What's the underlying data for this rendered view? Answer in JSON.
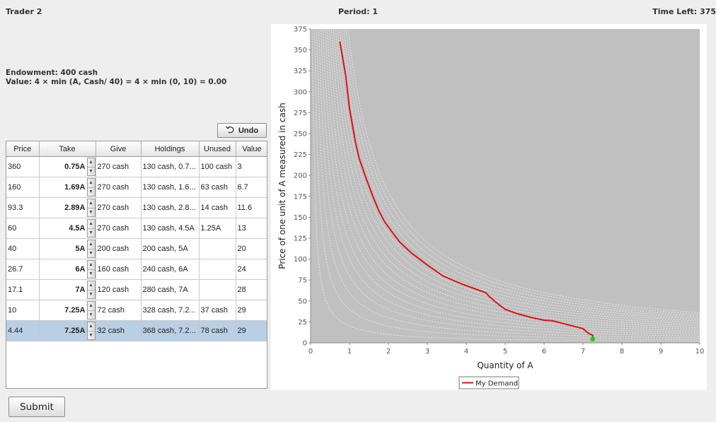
{
  "header": {
    "trader": "Trader 2",
    "period": "Period: 1",
    "time_left": "Time Left: 375"
  },
  "info": {
    "endowment": "Endowment: 400 cash",
    "value": "Value: 4 × min (A, Cash/ 40) = 4 × min (0, 10) = 0.00"
  },
  "undo": {
    "label": "Undo",
    "icon": "undo-icon"
  },
  "table": {
    "columns": [
      "Price",
      "Take",
      "Give",
      "Holdings",
      "Unused",
      "Value"
    ],
    "rows": [
      {
        "price": "360",
        "take": "0.75A",
        "give": "270 cash",
        "holdings": "130 cash, 0.7...",
        "unused": "100 cash",
        "value": "3"
      },
      {
        "price": "160",
        "take": "1.69A",
        "give": "270 cash",
        "holdings": "130 cash, 1.6...",
        "unused": "63 cash",
        "value": "6.7"
      },
      {
        "price": "93.3",
        "take": "2.89A",
        "give": "270 cash",
        "holdings": "130 cash, 2.8...",
        "unused": "14 cash",
        "value": "11.6"
      },
      {
        "price": "60",
        "take": "4.5A",
        "give": "270 cash",
        "holdings": "130 cash, 4.5A",
        "unused": "1.25A",
        "value": "13"
      },
      {
        "price": "40",
        "take": "5A",
        "give": "200 cash",
        "holdings": "200 cash, 5A",
        "unused": "",
        "value": "20"
      },
      {
        "price": "26.7",
        "take": "6A",
        "give": "160 cash",
        "holdings": "240 cash, 6A",
        "unused": "",
        "value": "24"
      },
      {
        "price": "17.1",
        "take": "7A",
        "give": "120 cash",
        "holdings": "280 cash, 7A",
        "unused": "",
        "value": "28"
      },
      {
        "price": "10",
        "take": "7.25A",
        "give": "72 cash",
        "holdings": "328 cash, 7.2...",
        "unused": "37 cash",
        "value": "29"
      },
      {
        "price": "4.44",
        "take": "7.25A",
        "give": "32 cash",
        "holdings": "368 cash, 7.2...",
        "unused": "78 cash",
        "value": "29",
        "selected": true
      }
    ]
  },
  "submit": {
    "label": "Submit"
  },
  "chart_data": {
    "type": "line",
    "xlabel": "Quantity of A",
    "ylabel": "Price of one unit of A measured in cash",
    "xlim": [
      0,
      10
    ],
    "ylim": [
      0,
      375
    ],
    "x_ticks": [
      0,
      1,
      2,
      3,
      4,
      5,
      6,
      7,
      8,
      9,
      10
    ],
    "y_ticks": [
      0,
      25,
      50,
      75,
      100,
      125,
      150,
      175,
      200,
      225,
      250,
      275,
      300,
      325,
      350,
      375
    ],
    "grid": false,
    "background": "#c0c0c0",
    "legend_position": "bottom",
    "series": [
      {
        "name": "My Demand",
        "color": "#e01010",
        "points": [
          [
            0.75,
            360
          ],
          [
            0.9,
            320
          ],
          [
            1.0,
            280
          ],
          [
            1.15,
            240
          ],
          [
            1.25,
            220
          ],
          [
            1.4,
            200
          ],
          [
            1.6,
            175
          ],
          [
            1.75,
            158
          ],
          [
            1.9,
            145
          ],
          [
            2.1,
            132
          ],
          [
            2.3,
            120
          ],
          [
            2.6,
            107
          ],
          [
            3.0,
            93
          ],
          [
            3.4,
            80
          ],
          [
            3.9,
            70
          ],
          [
            4.2,
            65
          ],
          [
            4.5,
            60
          ],
          [
            4.6,
            55
          ],
          [
            4.8,
            47
          ],
          [
            5.0,
            40
          ],
          [
            5.3,
            35
          ],
          [
            5.7,
            30
          ],
          [
            6.0,
            27
          ],
          [
            6.2,
            26.5
          ],
          [
            6.5,
            23
          ],
          [
            7.0,
            17
          ],
          [
            7.15,
            11
          ],
          [
            7.25,
            9
          ],
          [
            7.25,
            4.44
          ]
        ]
      }
    ],
    "marker": {
      "x": 7.25,
      "y": 4.44,
      "color": "#22cc22"
    },
    "indifference_curve_levels": [
      2,
      4,
      6,
      8,
      10,
      12,
      14,
      16,
      18,
      20,
      22,
      24,
      26,
      28,
      30,
      32,
      34,
      36
    ]
  }
}
